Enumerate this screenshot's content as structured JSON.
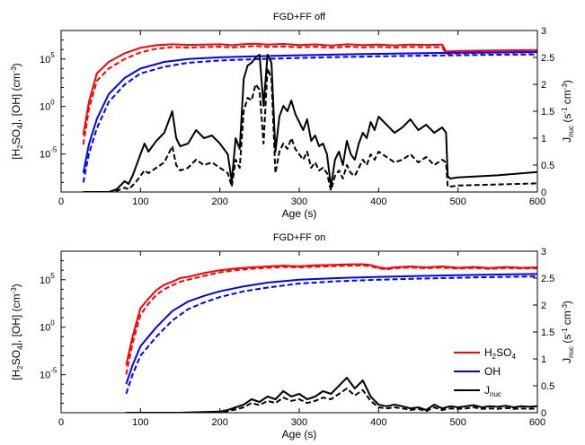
{
  "chart_data": [
    {
      "type": "line",
      "title": "FGD+FF off",
      "xlabel": "Age (s)",
      "ylabel": "[H2SO4], [OH] (cm-3)",
      "y2label": "Jnuc (s-1 cm-3)",
      "xlim": [
        0,
        600
      ],
      "ylim": [
        1e-09,
        100000000.0
      ],
      "yscale": "log",
      "y2lim": [
        0,
        3
      ],
      "xticks": [
        0,
        100,
        200,
        300,
        400,
        500,
        600
      ],
      "yticks": [
        {
          "v": 1e-05,
          "mant": "10",
          "exp": "-5"
        },
        {
          "v": 1,
          "mant": "10",
          "exp": "0"
        },
        {
          "v": 100000,
          "mant": "10",
          "exp": "5"
        }
      ],
      "y2ticks": [
        0,
        0.5,
        1,
        1.5,
        2,
        2.5,
        3
      ],
      "series": [
        {
          "key": "h2so4_solid",
          "axis": "left",
          "color": "#ff0000",
          "dash": "none",
          "x": [
            28,
            35,
            45,
            60,
            80,
            100,
            120,
            140,
            160,
            180,
            200,
            215,
            230,
            245,
            260,
            280,
            300,
            320,
            340,
            360,
            380,
            400,
            420,
            440,
            460,
            480,
            485,
            500,
            550,
            600
          ],
          "y": [
            0.001,
            3,
            3000,
            50000,
            400000,
            1500000,
            2800000,
            3500000,
            3000000,
            3200000,
            3500000,
            2800000,
            3600000,
            4000000,
            3200000,
            3800000,
            2900000,
            3400000,
            2600000,
            3500000,
            2900000,
            3200000,
            2700000,
            3300000,
            3000000,
            3200000,
            600000,
            700000,
            800000,
            900000
          ]
        },
        {
          "key": "h2so4_dashed",
          "axis": "left",
          "color": "#ff0000",
          "dash": "6,3",
          "x": [
            28,
            35,
            45,
            60,
            80,
            100,
            120,
            140,
            160,
            180,
            200,
            215,
            230,
            245,
            260,
            280,
            300,
            320,
            340,
            360,
            380,
            400,
            420,
            440,
            460,
            480,
            485,
            500,
            550,
            600
          ],
          "y": [
            0.0001,
            0.5,
            500,
            10000,
            100000,
            500000,
            1200000,
            1800000,
            1600000,
            1800000,
            2000000,
            1600000,
            2000000,
            2300000,
            1900000,
            2100000,
            1700000,
            2000000,
            1500000,
            2000000,
            1700000,
            1900000,
            1600000,
            1900000,
            1700000,
            1800000,
            350000,
            400000,
            450000,
            500000
          ]
        },
        {
          "key": "oh_solid",
          "axis": "left",
          "color": "#0000ff",
          "dash": "none",
          "x": [
            28,
            35,
            45,
            60,
            80,
            100,
            130,
            160,
            200,
            250,
            300,
            350,
            400,
            450,
            500,
            550,
            600
          ],
          "y": [
            1e-07,
            0.0001,
            0.05,
            20,
            1000,
            10000,
            50000,
            100000,
            150000,
            200000,
            250000,
            300000,
            350000,
            400000,
            450000,
            500000,
            550000
          ]
        },
        {
          "key": "oh_dashed",
          "axis": "left",
          "color": "#0000ff",
          "dash": "6,3",
          "x": [
            28,
            35,
            45,
            60,
            80,
            100,
            130,
            160,
            200,
            250,
            300,
            350,
            400,
            450,
            500,
            550,
            600
          ],
          "y": [
            1e-08,
            1e-05,
            0.005,
            3,
            200,
            3000,
            15000,
            40000,
            70000,
            100000,
            130000,
            160000,
            190000,
            220000,
            250000,
            280000,
            300000
          ]
        },
        {
          "key": "jnuc_solid",
          "axis": "right",
          "color": "#000000",
          "dash": "none",
          "x": [
            28,
            60,
            70,
            80,
            85,
            90,
            95,
            100,
            105,
            110,
            115,
            120,
            130,
            135,
            140,
            145,
            150,
            160,
            170,
            180,
            190,
            200,
            210,
            215,
            220,
            225,
            230,
            235,
            240,
            245,
            250,
            255,
            260,
            265,
            270,
            275,
            280,
            285,
            290,
            295,
            300,
            305,
            310,
            315,
            320,
            325,
            330,
            335,
            340,
            345,
            350,
            355,
            360,
            365,
            370,
            375,
            380,
            385,
            390,
            395,
            400,
            410,
            420,
            430,
            440,
            450,
            460,
            470,
            480,
            485,
            487,
            490,
            500,
            550,
            600
          ],
          "y": [
            0,
            0,
            0.05,
            0.2,
            0.15,
            0.3,
            0.5,
            0.7,
            0.9,
            0.75,
            0.85,
            0.95,
            1.1,
            1.3,
            1.5,
            1.0,
            0.85,
            0.9,
            1.15,
            1.0,
            1.05,
            0.9,
            0.7,
            0.2,
            1.0,
            0.8,
            2.1,
            2.35,
            2.4,
            2.5,
            2.55,
            1.6,
            2.55,
            2.4,
            0.75,
            1.4,
            1.6,
            1.5,
            1.7,
            1.45,
            1.3,
            1.15,
            1.35,
            0.95,
            1.05,
            0.85,
            0.9,
            0.7,
            0.1,
            0.6,
            0.75,
            0.5,
            0.95,
            0.7,
            0.6,
            0.9,
            1.1,
            1.0,
            1.3,
            1.15,
            1.4,
            1.25,
            1.1,
            1.2,
            1.35,
            1.15,
            1.25,
            1.1,
            1.2,
            1.1,
            0.3,
            0.25,
            0.27,
            0.31,
            0.37
          ]
        },
        {
          "key": "jnuc_dashed",
          "axis": "right",
          "color": "#000000",
          "dash": "6,3",
          "x": [
            28,
            60,
            70,
            80,
            85,
            90,
            95,
            100,
            105,
            110,
            115,
            120,
            130,
            135,
            140,
            145,
            150,
            160,
            170,
            180,
            190,
            200,
            210,
            215,
            220,
            225,
            230,
            235,
            240,
            245,
            250,
            255,
            260,
            265,
            270,
            275,
            280,
            285,
            290,
            295,
            300,
            305,
            310,
            315,
            320,
            325,
            330,
            335,
            340,
            345,
            350,
            355,
            360,
            365,
            370,
            375,
            380,
            385,
            390,
            395,
            400,
            410,
            420,
            430,
            440,
            450,
            460,
            470,
            480,
            485,
            487,
            490,
            500,
            550,
            600
          ],
          "y": [
            0,
            0,
            0.02,
            0.08,
            0.05,
            0.12,
            0.2,
            0.3,
            0.4,
            0.35,
            0.4,
            0.45,
            0.55,
            0.7,
            0.85,
            0.5,
            0.4,
            0.45,
            0.6,
            0.5,
            0.55,
            0.45,
            0.35,
            0.1,
            0.6,
            0.45,
            1.5,
            1.75,
            1.7,
            2.0,
            1.9,
            0.9,
            2.3,
            2.1,
            0.35,
            0.75,
            0.9,
            0.8,
            1.0,
            0.8,
            0.7,
            0.6,
            0.75,
            0.45,
            0.55,
            0.4,
            0.45,
            0.35,
            0.03,
            0.3,
            0.4,
            0.25,
            0.5,
            0.35,
            0.3,
            0.45,
            0.6,
            0.5,
            0.7,
            0.6,
            0.75,
            0.65,
            0.55,
            0.6,
            0.7,
            0.55,
            0.65,
            0.5,
            0.6,
            0.55,
            0.1,
            0.1,
            0.12,
            0.14,
            0.16
          ]
        }
      ]
    },
    {
      "type": "line",
      "title": "FGD+FF on",
      "xlabel": "Age (s)",
      "ylabel": "[H2SO4], [OH] (cm-3)",
      "y2label": "Jnuc (s-1 cm-3)",
      "xlim": [
        0,
        600
      ],
      "ylim": [
        1e-09,
        100000000.0
      ],
      "yscale": "log",
      "y2lim": [
        0,
        3
      ],
      "xticks": [
        0,
        100,
        200,
        300,
        400,
        500,
        600
      ],
      "yticks": [
        {
          "v": 1e-05,
          "mant": "10",
          "exp": "-5"
        },
        {
          "v": 1,
          "mant": "10",
          "exp": "0"
        },
        {
          "v": 100000,
          "mant": "10",
          "exp": "5"
        }
      ],
      "y2ticks": [
        0,
        0.5,
        1,
        1.5,
        2,
        2.5,
        3
      ],
      "legend": {
        "position": "bottom-right"
      },
      "series": [
        {
          "key": "h2so4_solid",
          "name": "H2SO4",
          "axis": "left",
          "color": "#ff0000",
          "dash": "none",
          "x": [
            82,
            90,
            100,
            110,
            120,
            130,
            140,
            150,
            160,
            180,
            200,
            220,
            240,
            260,
            280,
            300,
            320,
            340,
            360,
            380,
            390,
            400,
            410,
            420,
            440,
            460,
            480,
            500,
            520,
            540,
            560,
            580,
            600
          ],
          "y": [
            0.0001,
            0.1,
            100,
            1000,
            8000,
            30000,
            60000,
            150000,
            200000,
            500000,
            1000000,
            1500000,
            2000000,
            2500000,
            3000000,
            2600000,
            3200000,
            3500000,
            4000000,
            4300000,
            3500000,
            2000000,
            1500000,
            2000000,
            2500000,
            2000000,
            2500000,
            1800000,
            2200000,
            1700000,
            2200000,
            1800000,
            2000000
          ]
        },
        {
          "key": "h2so4_dashed",
          "axis": "left",
          "color": "#ff0000",
          "dash": "6,3",
          "x": [
            82,
            90,
            100,
            110,
            120,
            130,
            140,
            150,
            160,
            180,
            200,
            220,
            240,
            260,
            280,
            300,
            320,
            340,
            360,
            380,
            390,
            400,
            410,
            420,
            440,
            460,
            480,
            500,
            520,
            540,
            560,
            580,
            600
          ],
          "y": [
            1e-05,
            0.02,
            20,
            300,
            2500,
            10000,
            25000,
            60000,
            100000,
            250000,
            600000,
            1000000,
            1400000,
            1800000,
            2200000,
            2000000,
            2400000,
            2600000,
            3000000,
            3200000,
            2600000,
            1600000,
            1200000,
            1600000,
            1900000,
            1600000,
            1900000,
            1500000,
            1700000,
            1400000,
            1700000,
            1500000,
            1600000
          ]
        },
        {
          "key": "oh_solid",
          "name": "OH",
          "axis": "left",
          "color": "#0000ff",
          "dash": "none",
          "x": [
            82,
            90,
            100,
            120,
            140,
            160,
            180,
            200,
            230,
            260,
            300,
            350,
            400,
            450,
            500,
            550,
            600
          ],
          "y": [
            1e-06,
            0.0001,
            0.01,
            1,
            50,
            500,
            2000,
            6000,
            20000,
            50000,
            100000,
            150000,
            200000,
            250000,
            300000,
            350000,
            400000
          ]
        },
        {
          "key": "oh_dashed",
          "axis": "left",
          "color": "#0000ff",
          "dash": "6,3",
          "x": [
            82,
            90,
            100,
            120,
            140,
            160,
            180,
            200,
            230,
            260,
            300,
            350,
            400,
            450,
            500,
            550,
            600
          ],
          "y": [
            1e-07,
            1e-05,
            0.001,
            0.1,
            5,
            80,
            400,
            1500,
            6000,
            15000,
            40000,
            70000,
            100000,
            130000,
            160000,
            190000,
            220000
          ]
        },
        {
          "key": "jnuc_solid",
          "name": "Jnuc",
          "axis": "right",
          "color": "#000000",
          "dash": "none",
          "x": [
            82,
            150,
            200,
            210,
            220,
            230,
            240,
            250,
            260,
            270,
            280,
            290,
            300,
            310,
            320,
            330,
            340,
            350,
            360,
            370,
            380,
            390,
            400,
            410,
            420,
            430,
            440,
            450,
            460,
            470,
            480,
            490,
            500,
            510,
            520,
            530,
            540,
            550,
            560,
            570,
            580,
            590,
            600
          ],
          "y": [
            0,
            0,
            0.02,
            0.05,
            0.1,
            0.15,
            0.25,
            0.2,
            0.3,
            0.25,
            0.4,
            0.3,
            0.35,
            0.25,
            0.3,
            0.4,
            0.35,
            0.5,
            0.65,
            0.45,
            0.6,
            0.3,
            0.15,
            0.12,
            0.15,
            0.12,
            0.08,
            0.1,
            0.05,
            0.15,
            0.08,
            0.12,
            0.1,
            0.12,
            0.14,
            0.1,
            0.12,
            0.11,
            0.13,
            0.1,
            0.12,
            0.11,
            0.12
          ]
        },
        {
          "key": "jnuc_dashed",
          "axis": "right",
          "color": "#000000",
          "dash": "6,3",
          "x": [
            82,
            150,
            200,
            210,
            220,
            230,
            240,
            250,
            260,
            270,
            280,
            290,
            300,
            310,
            320,
            330,
            340,
            350,
            360,
            370,
            380,
            390,
            400,
            410,
            420,
            430,
            440,
            450,
            460,
            470,
            480,
            490,
            500,
            510,
            520,
            530,
            540,
            550,
            560,
            570,
            580,
            590,
            600
          ],
          "y": [
            0,
            0,
            0.01,
            0.03,
            0.06,
            0.1,
            0.18,
            0.14,
            0.22,
            0.18,
            0.28,
            0.22,
            0.25,
            0.18,
            0.22,
            0.28,
            0.25,
            0.35,
            0.45,
            0.32,
            0.42,
            0.22,
            0.1,
            0.08,
            0.1,
            0.08,
            0.05,
            0.07,
            0.03,
            0.1,
            0.05,
            0.08,
            0.07,
            0.08,
            0.1,
            0.07,
            0.08,
            0.07,
            0.09,
            0.07,
            0.08,
            0.07,
            0.08
          ]
        }
      ]
    }
  ]
}
